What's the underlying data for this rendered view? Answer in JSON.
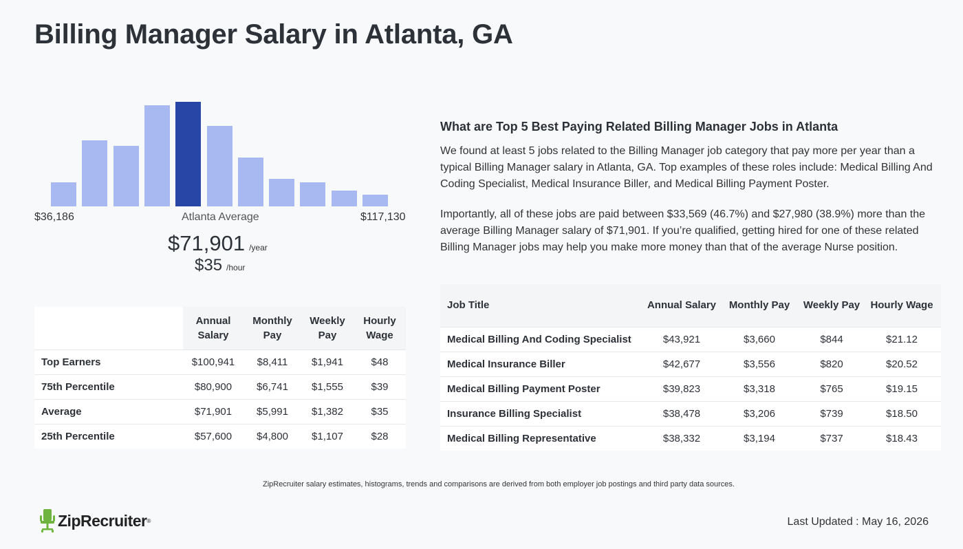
{
  "page_title": "Billing Manager Salary in Atlanta, GA",
  "histogram": {
    "min_label": "$36,186",
    "mid_label": "Atlanta Average",
    "max_label": "$117,130",
    "bar_levels": [
      0.23,
      0.63,
      0.58,
      0.97,
      1.0,
      0.77,
      0.47,
      0.26,
      0.23,
      0.15,
      0.11
    ],
    "highlight_index": 4,
    "bar_color": "#a8b8f0",
    "highlight_color": "#2746a6"
  },
  "average": {
    "annual": "$71,901",
    "annual_unit": "/year",
    "hourly": "$35",
    "hourly_unit": "/hour"
  },
  "percentile_table": {
    "headers": [
      "Annual Salary",
      "Monthly Pay",
      "Weekly Pay",
      "Hourly Wage"
    ],
    "rows": [
      {
        "label": "Top Earners",
        "values": [
          "$100,941",
          "$8,411",
          "$1,941",
          "$48"
        ]
      },
      {
        "label": "75th Percentile",
        "values": [
          "$80,900",
          "$6,741",
          "$1,555",
          "$39"
        ]
      },
      {
        "label": "Average",
        "values": [
          "$71,901",
          "$5,991",
          "$1,382",
          "$35"
        ]
      },
      {
        "label": "25th Percentile",
        "values": [
          "$57,600",
          "$4,800",
          "$1,107",
          "$28"
        ]
      }
    ]
  },
  "related_jobs": {
    "heading": "What are Top 5 Best Paying Related Billing Manager Jobs in Atlanta",
    "paragraph1": "We found at least 5 jobs related to the Billing Manager job category that pay more per year than a typical Billing Manager salary in Atlanta, GA. Top examples of these roles include: Medical Billing And Coding Specialist, Medical Insurance Biller, and Medical Billing Payment Poster.",
    "paragraph2": "Importantly, all of these jobs are paid between $33,569 (46.7%) and $27,980 (38.9%) more than the average Billing Manager salary of $71,901. If you’re qualified, getting hired for one of these related Billing Manager jobs may help you make more money than that of the average Nurse position.",
    "headers": [
      "Job Title",
      "Annual Salary",
      "Monthly Pay",
      "Weekly Pay",
      "Hourly Wage"
    ],
    "rows": [
      {
        "title": "Medical Billing And Coding Specialist",
        "values": [
          "$43,921",
          "$3,660",
          "$844",
          "$21.12"
        ]
      },
      {
        "title": "Medical Insurance Biller",
        "values": [
          "$42,677",
          "$3,556",
          "$820",
          "$20.52"
        ]
      },
      {
        "title": "Medical Billing Payment Poster",
        "values": [
          "$39,823",
          "$3,318",
          "$765",
          "$19.15"
        ]
      },
      {
        "title": "Insurance Billing Specialist",
        "values": [
          "$38,478",
          "$3,206",
          "$739",
          "$18.50"
        ]
      },
      {
        "title": "Medical Billing Representative",
        "values": [
          "$38,332",
          "$3,194",
          "$737",
          "$18.43"
        ]
      }
    ]
  },
  "footer": {
    "disclaimer": "ZipRecruiter salary estimates, histograms, trends and comparisons are derived from both employer job postings and third party data sources.",
    "logo_text": "ZipRecruiter",
    "logo_reg": "®",
    "logo_color": "#6fb43f",
    "last_updated": "Last Updated : May 16, 2026"
  }
}
